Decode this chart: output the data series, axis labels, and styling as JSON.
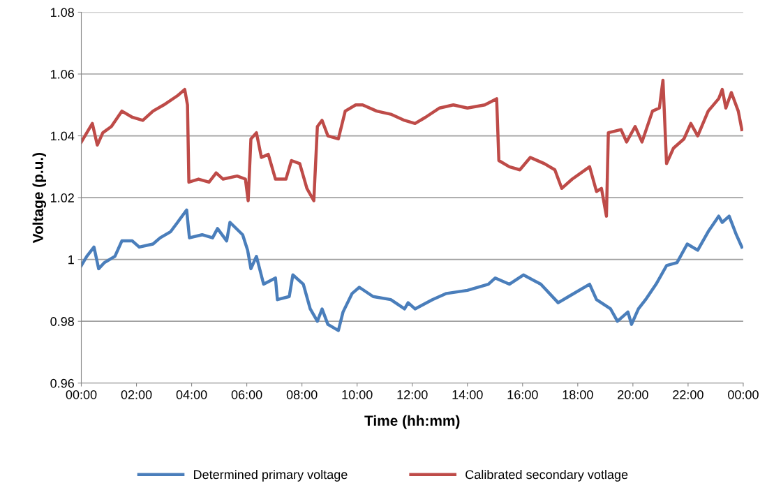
{
  "chart_data": {
    "type": "line",
    "xlabel": "Time (hh:mm)",
    "ylabel": "Voltage (p.u.)",
    "xlim": [
      0,
      24
    ],
    "xticks": [
      {
        "value": 0,
        "label": "00:00"
      },
      {
        "value": 2,
        "label": "02:00"
      },
      {
        "value": 4,
        "label": "04:00"
      },
      {
        "value": 6,
        "label": "06:00"
      },
      {
        "value": 8,
        "label": "08:00"
      },
      {
        "value": 10,
        "label": "10:00"
      },
      {
        "value": 12,
        "label": "12:00"
      },
      {
        "value": 14,
        "label": "14:00"
      },
      {
        "value": 16,
        "label": "16:00"
      },
      {
        "value": 18,
        "label": "18:00"
      },
      {
        "value": 20,
        "label": "20:00"
      },
      {
        "value": 22,
        "label": "22:00"
      },
      {
        "value": 24,
        "label": "00:00"
      }
    ],
    "ylim": [
      0.96,
      1.08
    ],
    "yticks": [
      {
        "value": 0.96,
        "label": "0.96"
      },
      {
        "value": 0.98,
        "label": "0.98"
      },
      {
        "value": 1,
        "label": "1"
      },
      {
        "value": 1.02,
        "label": "1.02"
      },
      {
        "value": 1.04,
        "label": "1.04"
      },
      {
        "value": 1.06,
        "label": "1.06"
      },
      {
        "value": 1.08,
        "label": "1.08"
      }
    ],
    "grid": "y",
    "legend": "bottom",
    "marker": "none",
    "line_style": "solid",
    "series": [
      {
        "name": "Determined primary voltage",
        "color": "#4a7ebb",
        "x": [
          0,
          0.2,
          0.46,
          0.63,
          0.84,
          1.22,
          1.47,
          1.85,
          2.1,
          2.6,
          2.86,
          3.24,
          3.49,
          3.82,
          3.92,
          4.38,
          4.76,
          4.94,
          5.27,
          5.39,
          5.85,
          6.03,
          6.15,
          6.35,
          6.61,
          7.04,
          7.11,
          7.54,
          7.67,
          8.05,
          8.3,
          8.56,
          8.73,
          8.94,
          9.32,
          9.49,
          9.82,
          10.08,
          10.58,
          11.22,
          11.72,
          11.85,
          12.1,
          12.73,
          13.24,
          14.0,
          14.76,
          15.01,
          15.52,
          16.03,
          16.66,
          17.29,
          17.67,
          18.43,
          18.68,
          19.19,
          19.44,
          19.82,
          19.95,
          20.2,
          20.46,
          20.84,
          21.22,
          21.6,
          21.97,
          22.35,
          22.73,
          23.11,
          23.24,
          23.49,
          23.75,
          23.95
        ],
        "values": [
          0.998,
          1.001,
          1.004,
          0.997,
          0.999,
          1.001,
          1.006,
          1.006,
          1.004,
          1.005,
          1.007,
          1.009,
          1.012,
          1.016,
          1.007,
          1.008,
          1.007,
          1.01,
          1.006,
          1.012,
          1.008,
          1.003,
          0.997,
          1.001,
          0.992,
          0.994,
          0.987,
          0.988,
          0.995,
          0.992,
          0.984,
          0.98,
          0.984,
          0.979,
          0.977,
          0.983,
          0.989,
          0.991,
          0.988,
          0.987,
          0.984,
          0.986,
          0.984,
          0.987,
          0.989,
          0.99,
          0.992,
          0.994,
          0.992,
          0.995,
          0.992,
          0.986,
          0.988,
          0.992,
          0.987,
          0.984,
          0.98,
          0.983,
          0.979,
          0.984,
          0.987,
          0.992,
          0.998,
          0.999,
          1.005,
          1.003,
          1.009,
          1.014,
          1.012,
          1.014,
          1.008,
          1.004
        ]
      },
      {
        "name": "Calibrated secondary votlage",
        "color": "#be4b48",
        "x": [
          0,
          0.2,
          0.4,
          0.58,
          0.78,
          1.09,
          1.47,
          1.85,
          2.23,
          2.6,
          2.99,
          3.49,
          3.75,
          3.85,
          3.9,
          4.25,
          4.63,
          4.89,
          5.14,
          5.65,
          5.95,
          6.05,
          6.15,
          6.35,
          6.53,
          6.78,
          7.04,
          7.42,
          7.62,
          7.92,
          8.18,
          8.43,
          8.56,
          8.73,
          8.94,
          9.32,
          9.57,
          9.95,
          10.2,
          10.71,
          11.22,
          11.72,
          12.1,
          12.48,
          12.99,
          13.49,
          14.0,
          14.63,
          15.06,
          15.14,
          15.52,
          15.9,
          16.28,
          16.79,
          17.17,
          17.42,
          17.8,
          18.43,
          18.68,
          18.86,
          19.04,
          19.11,
          19.57,
          19.77,
          20.08,
          20.33,
          20.71,
          20.96,
          21.09,
          21.22,
          21.47,
          21.85,
          22.1,
          22.35,
          22.73,
          23.11,
          23.24,
          23.37,
          23.57,
          23.82,
          23.95
        ],
        "values": [
          1.038,
          1.041,
          1.044,
          1.037,
          1.041,
          1.043,
          1.048,
          1.046,
          1.045,
          1.048,
          1.05,
          1.053,
          1.055,
          1.05,
          1.025,
          1.026,
          1.025,
          1.028,
          1.026,
          1.027,
          1.026,
          1.019,
          1.039,
          1.041,
          1.033,
          1.034,
          1.026,
          1.026,
          1.032,
          1.031,
          1.023,
          1.019,
          1.043,
          1.045,
          1.04,
          1.039,
          1.048,
          1.05,
          1.05,
          1.048,
          1.047,
          1.045,
          1.044,
          1.046,
          1.049,
          1.05,
          1.049,
          1.05,
          1.052,
          1.032,
          1.03,
          1.029,
          1.033,
          1.031,
          1.029,
          1.023,
          1.026,
          1.03,
          1.022,
          1.023,
          1.014,
          1.041,
          1.042,
          1.038,
          1.043,
          1.038,
          1.048,
          1.049,
          1.058,
          1.031,
          1.036,
          1.039,
          1.044,
          1.04,
          1.048,
          1.052,
          1.055,
          1.049,
          1.054,
          1.048,
          1.042
        ]
      }
    ]
  }
}
